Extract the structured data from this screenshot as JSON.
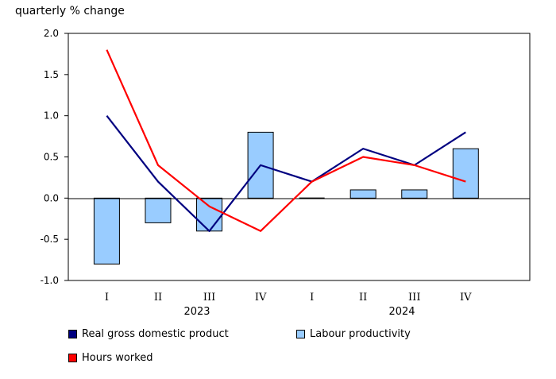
{
  "chart_data": {
    "type": "bar+line",
    "ylabel": "quarterly % change",
    "ylim": [
      -1.0,
      2.0
    ],
    "yticks": [
      "2.0",
      "1.5",
      "1.0",
      "0.5",
      "0.0",
      "-0.5",
      "-1.0"
    ],
    "categories": [
      "I",
      "II",
      "III",
      "IV",
      "I",
      "II",
      "III",
      "IV"
    ],
    "years": [
      "2023",
      "2024"
    ],
    "series": [
      {
        "name": "Real gross domestic product",
        "kind": "line",
        "color": "#000080",
        "values": [
          1.0,
          0.2,
          -0.4,
          0.4,
          0.2,
          0.6,
          0.4,
          0.8
        ]
      },
      {
        "name": "Hours worked",
        "kind": "line",
        "color": "#ff0000",
        "values": [
          1.8,
          0.4,
          -0.1,
          -0.4,
          0.2,
          0.5,
          0.4,
          0.2
        ]
      },
      {
        "name": "Labour productivity",
        "kind": "bar",
        "color": "#99ccff",
        "values": [
          -0.8,
          -0.3,
          -0.4,
          0.8,
          0.0,
          0.1,
          0.1,
          0.6
        ]
      }
    ],
    "grid": false
  }
}
